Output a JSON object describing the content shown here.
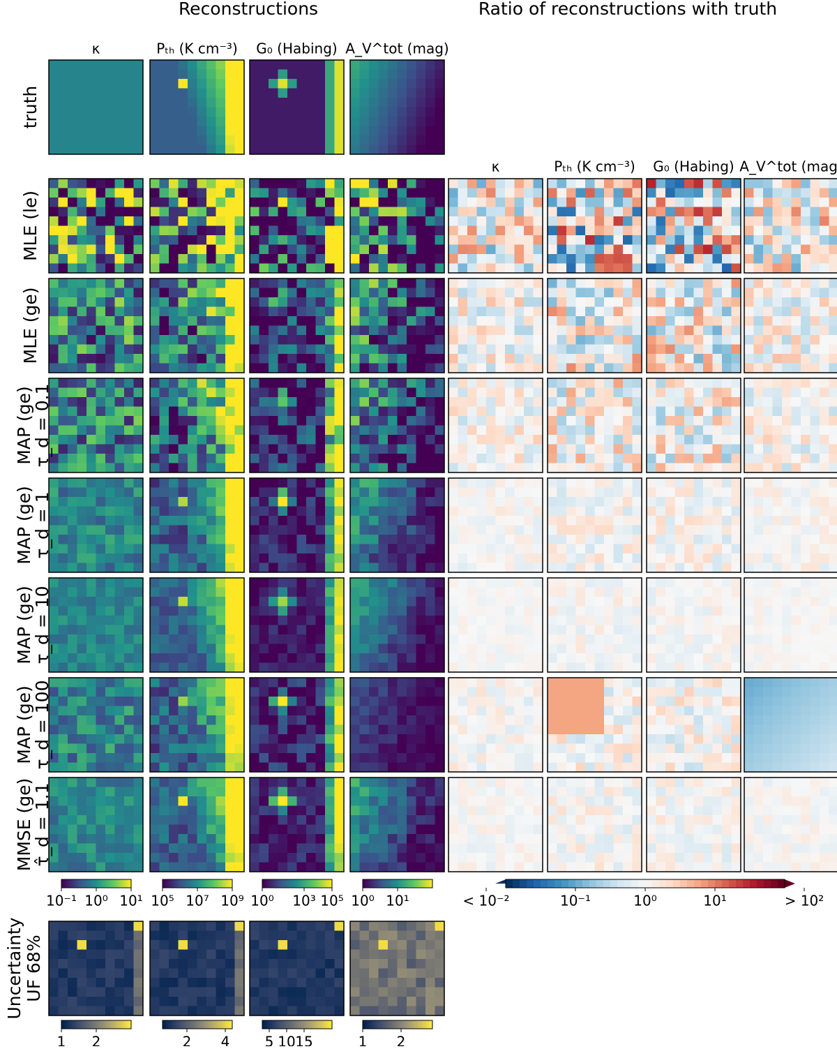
{
  "titles": {
    "left": "Reconstructions",
    "right": "Ratio of reconstructions with truth"
  },
  "columns": [
    "κ",
    "Pₜₕ (K cm⁻³)",
    "G₀ (Habing)",
    "A_V^tot (mag)"
  ],
  "rows": [
    [
      "truth"
    ],
    [
      "MLE (le)"
    ],
    [
      "MLE (ge)"
    ],
    [
      "MAP (ge)",
      "τ_d = 0.1"
    ],
    [
      "MAP (ge)",
      "τ_d = 1"
    ],
    [
      "MAP (ge)",
      "τ_d = 10"
    ],
    [
      "MAP (ge)",
      "τ_d = 100"
    ],
    [
      "MMSE (ge)",
      "τ̂_d = 1.1"
    ]
  ],
  "colorbars": [
    [
      "10⁻¹",
      "10⁰",
      "10¹"
    ],
    [
      "10⁵",
      "10⁷",
      "10⁹"
    ],
    [
      "10⁰",
      "10³",
      "10⁵"
    ],
    [
      "10⁰",
      "10¹"
    ]
  ],
  "ratio_colorbar": [
    "< 10⁻²",
    "10⁻¹",
    "10⁰",
    "10¹",
    "> 10²"
  ],
  "uncertainty": {
    "label": [
      "Uncertainty",
      "UF 68%"
    ],
    "colorbars": [
      [
        1,
        2
      ],
      [
        2,
        4
      ],
      [
        5,
        10,
        15
      ],
      [
        1,
        2
      ]
    ]
  }
}
